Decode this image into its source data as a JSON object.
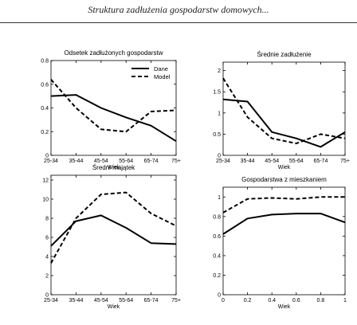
{
  "header": {
    "title": "Struktura zadłużenia gospodarstw domowych..."
  },
  "legend": {
    "dane": "Dane",
    "model": "Model"
  },
  "chart_data": [
    {
      "type": "line",
      "title": "Odsetek zadłużonych gospodarstw",
      "xlabel": "Wiek",
      "ylabel": "",
      "categories": [
        "25-34",
        "35-44",
        "45-54",
        "55-64",
        "65-74",
        "75+"
      ],
      "ylim": [
        0,
        0.8
      ],
      "yticks": [
        "0",
        "0.2",
        "0.4",
        "0.6",
        "0.8"
      ],
      "ytick_values": [
        0,
        0.2,
        0.4,
        0.6,
        0.8
      ],
      "series": [
        {
          "name": "Dane",
          "values": [
            0.5,
            0.51,
            0.4,
            0.32,
            0.25,
            0.12
          ]
        },
        {
          "name": "Model",
          "values": [
            0.64,
            0.4,
            0.22,
            0.2,
            0.37,
            0.38
          ]
        }
      ],
      "legend": "top-right"
    },
    {
      "type": "line",
      "title": "Średnie zadłużenie",
      "xlabel": "Wiek",
      "ylabel": "",
      "categories": [
        "25-34",
        "35-44",
        "45-54",
        "55-64",
        "65-74",
        "75+"
      ],
      "ylim": [
        0,
        2.2
      ],
      "yticks": [
        "0",
        "0.5",
        "1",
        "1.5",
        "2"
      ],
      "ytick_values": [
        0,
        0.5,
        1,
        1.5,
        2
      ],
      "series": [
        {
          "name": "Dane",
          "values": [
            1.32,
            1.27,
            0.55,
            0.4,
            0.2,
            0.55
          ]
        },
        {
          "name": "Model",
          "values": [
            1.82,
            0.9,
            0.4,
            0.28,
            0.5,
            0.4
          ]
        }
      ]
    },
    {
      "type": "line",
      "title": "Średni majątek",
      "xlabel": "Wiek",
      "ylabel": "",
      "categories": [
        "25-34",
        "35-44",
        "45-54",
        "55-64",
        "65-74",
        "75+"
      ],
      "ylim": [
        0,
        12.5
      ],
      "yticks": [
        "0",
        "2",
        "4",
        "6",
        "8",
        "10",
        "12"
      ],
      "ytick_values": [
        0,
        2,
        4,
        6,
        8,
        10,
        12
      ],
      "series": [
        {
          "name": "Dane",
          "values": [
            5.1,
            7.7,
            8.3,
            7.0,
            5.4,
            5.3
          ]
        },
        {
          "name": "Model",
          "values": [
            3.3,
            8.0,
            10.5,
            10.7,
            8.5,
            7.2
          ]
        }
      ]
    },
    {
      "type": "line",
      "title": "Gospodarstwa z mieszkaniem",
      "xlabel": "Wiek",
      "ylabel": "",
      "categories": [
        "0",
        "0.2",
        "0.4",
        "0.6",
        "0.8",
        "1"
      ],
      "ylim": [
        0,
        1.1
      ],
      "yticks": [
        "0",
        "0.2",
        "0.4",
        "0.6",
        "0.8",
        "1"
      ],
      "ytick_values": [
        0,
        0.2,
        0.4,
        0.6,
        0.8,
        1
      ],
      "series": [
        {
          "name": "Dane",
          "values": [
            0.62,
            0.78,
            0.82,
            0.83,
            0.83,
            0.74
          ]
        },
        {
          "name": "Model",
          "values": [
            0.84,
            0.98,
            0.99,
            0.98,
            1.0,
            1.0
          ]
        }
      ]
    }
  ]
}
